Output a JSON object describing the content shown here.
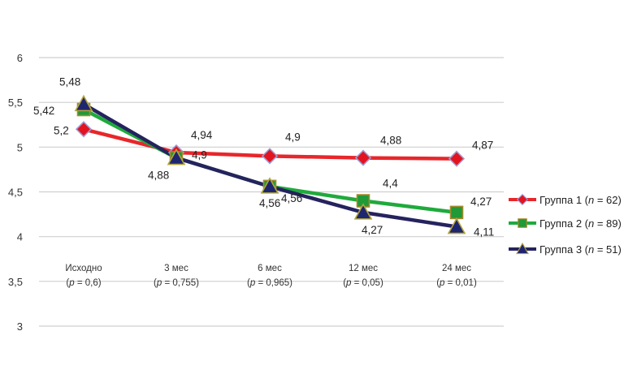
{
  "chart_data": {
    "type": "line",
    "title": "",
    "xlabel": "",
    "ylabel": "",
    "ylim": [
      3,
      6
    ],
    "yticks": [
      "3",
      "3,5",
      "4",
      "4,5",
      "5",
      "5,5",
      "6"
    ],
    "ytick_values": [
      3,
      3.5,
      4,
      4.5,
      5,
      5.5,
      6
    ],
    "grid": true,
    "legend_position": "right",
    "categories": [
      {
        "name": "Исходно",
        "p_prefix": "(",
        "p_letter": "p",
        "p_rest": " = 0,6)"
      },
      {
        "name": "3 мес",
        "p_prefix": "(",
        "p_letter": "p",
        "p_rest": " = 0,755)"
      },
      {
        "name": "6 мес",
        "p_prefix": "(",
        "p_letter": "p",
        "p_rest": " = 0,965)"
      },
      {
        "name": "12 мес",
        "p_prefix": "(",
        "p_letter": "p",
        "p_rest": " = 0,05)"
      },
      {
        "name": "24 мес",
        "p_prefix": "(",
        "p_letter": "p",
        "p_rest": " = 0,01)"
      }
    ],
    "series": [
      {
        "name": "Группа 1",
        "legend_prefix": "Группа 1 (",
        "legend_n": "n",
        "legend_rest": " = 62)",
        "color": "#e8262b",
        "marker_color": "#e3141f",
        "marker_edge": "#9c9cd6",
        "marker": "diamond",
        "values": [
          5.2,
          4.94,
          4.9,
          4.88,
          4.87
        ],
        "labels": [
          "5,2",
          "4,94",
          "4,9",
          "4,88",
          "4,87"
        ]
      },
      {
        "name": "Группа 2",
        "legend_prefix": "Группа 2 (",
        "legend_n": "n",
        "legend_rest": " = 89)",
        "color": "#1faa3c",
        "marker_color": "#1f9a37",
        "marker_edge": "#a58a2c",
        "marker": "square",
        "values": [
          5.42,
          4.88,
          4.56,
          4.4,
          4.27
        ],
        "labels": [
          "5,42",
          "4,9",
          "4,56",
          "4,4",
          "4,27"
        ]
      },
      {
        "name": "Группа 3",
        "legend_prefix": "Группа 3 (",
        "legend_n": "n",
        "legend_rest": " = 51)",
        "color": "#25235e",
        "marker_color": "#1f2670",
        "marker_edge": "#b3a43a",
        "marker": "triangle",
        "values": [
          5.48,
          4.88,
          4.56,
          4.27,
          4.11
        ],
        "labels": [
          "5,48",
          "4,88",
          "4,56",
          "4,27",
          "4,11"
        ]
      }
    ]
  }
}
